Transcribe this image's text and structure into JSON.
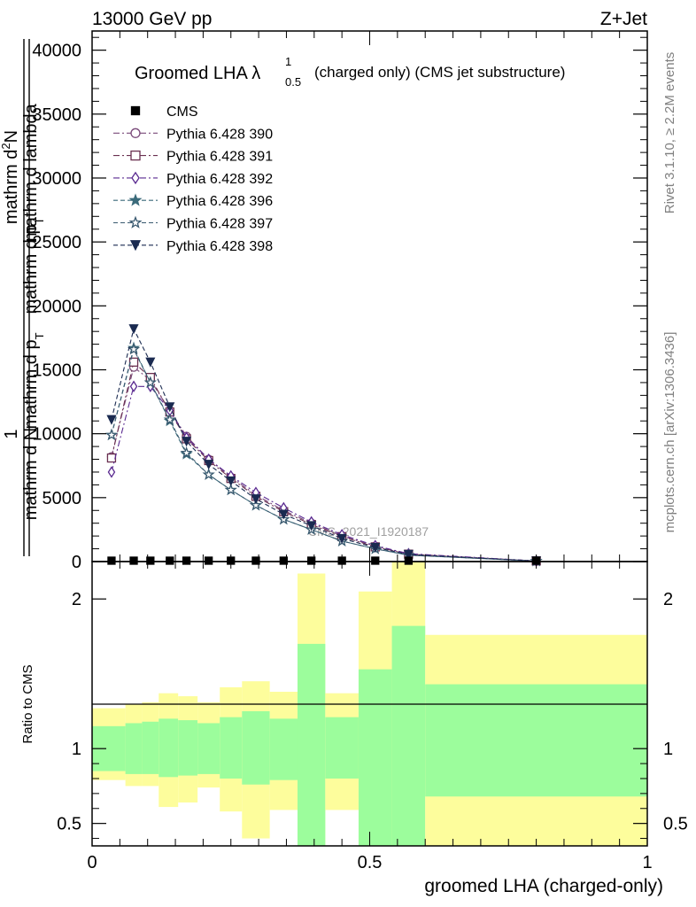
{
  "header": {
    "energy_label": "13000 GeV pp",
    "process_label": "Z+Jet"
  },
  "side_labels": {
    "rivet": "Rivet 3.1.10, ≥ 2.2M events",
    "mcplots": "mcplots.cern.ch [arXiv:1306.3436]"
  },
  "main_plot": {
    "title": "Groomed LHA λ",
    "title_superscript": "1",
    "title_subscript": "0.5",
    "title_suffix": "(charged only) (CMS jet substructure)",
    "ylabel_numerator": "1",
    "ylabel_line1": "mathrm d N",
    "ylabel_line2": "mathrm d p",
    "ylabel_line2_sub": "T",
    "ylabel_line3": "mathrm d lambda",
    "ylabel_top_line1": "mathrm d",
    "ylabel_top_line1_sup": "2",
    "ylabel_top_line1_rest": "N",
    "watermark": "CMS_2021_I1920187"
  },
  "ratio_plot": {
    "ylabel": "Ratio to CMS",
    "xlabel": "groomed LHA (charged-only)"
  },
  "legend": [
    {
      "name": "CMS",
      "color": "#000000",
      "marker": "filled-square",
      "dash": "none"
    },
    {
      "name": "Pythia 6.428 390",
      "color": "#7a4a7a",
      "marker": "open-circle",
      "dash": "7,3,2,3"
    },
    {
      "name": "Pythia 6.428 391",
      "color": "#6a3050",
      "marker": "open-square",
      "dash": "7,3,2,3"
    },
    {
      "name": "Pythia 6.428 392",
      "color": "#5a2a90",
      "marker": "open-diamond",
      "dash": "7,3,2,3"
    },
    {
      "name": "Pythia 6.428 396",
      "color": "#3a6a7a",
      "marker": "filled-star",
      "dash": "5,3"
    },
    {
      "name": "Pythia 6.428 397",
      "color": "#3a5a70",
      "marker": "open-star",
      "dash": "5,3"
    },
    {
      "name": "Pythia 6.428 398",
      "color": "#1a2a50",
      "marker": "filled-triangle-down",
      "dash": "5,3"
    }
  ],
  "chart_data": [
    {
      "type": "line",
      "x": [
        0.035,
        0.075,
        0.105,
        0.14,
        0.17,
        0.21,
        0.25,
        0.295,
        0.345,
        0.395,
        0.45,
        0.51,
        0.57,
        0.8
      ],
      "series": [
        {
          "name": "CMS",
          "values": [
            0.4,
            0.4,
            0.4,
            0.4,
            0.3,
            0.3,
            0.3,
            0.3,
            0.2,
            0.2,
            0.2,
            0.2,
            0.1,
            0.01
          ]
        },
        {
          "name": "Pythia 6.428 390",
          "values": [
            8200,
            15200,
            14200,
            11800,
            9800,
            8000,
            6600,
            5200,
            4000,
            3000,
            2000,
            1200,
            600,
            50
          ]
        },
        {
          "name": "Pythia 6.428 391",
          "values": [
            8100,
            15600,
            14400,
            11700,
            9600,
            7900,
            6500,
            5100,
            3900,
            2900,
            1950,
            1150,
            580,
            50
          ]
        },
        {
          "name": "Pythia 6.428 392",
          "values": [
            7000,
            13700,
            13700,
            11800,
            9700,
            8000,
            6700,
            5400,
            4200,
            3100,
            2100,
            1250,
            620,
            50
          ]
        },
        {
          "name": "Pythia 6.428 396",
          "values": [
            9900,
            16700,
            14000,
            11000,
            8400,
            6800,
            5600,
            4400,
            3300,
            2500,
            1600,
            1000,
            500,
            40
          ]
        },
        {
          "name": "Pythia 6.428 397",
          "values": [
            9900,
            16600,
            14000,
            11100,
            8500,
            6800,
            5600,
            4400,
            3300,
            2500,
            1600,
            1000,
            500,
            40
          ]
        },
        {
          "name": "Pythia 6.428 398",
          "values": [
            11100,
            18200,
            15600,
            12100,
            9400,
            7600,
            6300,
            4900,
            3700,
            2800,
            1800,
            1100,
            550,
            40
          ]
        }
      ],
      "xlim": [
        0,
        1
      ],
      "ylim": [
        0,
        41500
      ],
      "yticks": [
        0,
        5000,
        10000,
        15000,
        20000,
        25000,
        30000,
        35000,
        40000
      ],
      "ytick_labels": [
        "0",
        "5000",
        "10000",
        "15000",
        "20000",
        "25000",
        "30000",
        "35000",
        "40000"
      ],
      "legend_position": "top-left",
      "grid": false
    },
    {
      "type": "area",
      "ylim": [
        0.35,
        2.25
      ],
      "yticks": [
        0.5,
        1,
        2
      ],
      "ytick_labels": [
        "0.5",
        "1",
        "2"
      ],
      "xlim": [
        0,
        1
      ],
      "xticks": [
        0,
        0.5,
        1
      ],
      "xtick_labels": [
        "0",
        "0.5",
        "1"
      ],
      "reference_line": 1,
      "bins": [
        {
          "x0": 0.0,
          "x1": 0.06,
          "green": [
            0.85,
            1.15
          ],
          "yellow": [
            0.79,
            1.27
          ]
        },
        {
          "x0": 0.06,
          "x1": 0.09,
          "green": [
            0.83,
            1.17
          ],
          "yellow": [
            0.75,
            1.3
          ]
        },
        {
          "x0": 0.09,
          "x1": 0.12,
          "green": [
            0.83,
            1.18
          ],
          "yellow": [
            0.75,
            1.31
          ]
        },
        {
          "x0": 0.12,
          "x1": 0.155,
          "green": [
            0.81,
            1.2
          ],
          "yellow": [
            0.61,
            1.37
          ]
        },
        {
          "x0": 0.155,
          "x1": 0.19,
          "green": [
            0.82,
            1.19
          ],
          "yellow": [
            0.64,
            1.35
          ]
        },
        {
          "x0": 0.19,
          "x1": 0.23,
          "green": [
            0.83,
            1.17
          ],
          "yellow": [
            0.74,
            1.31
          ]
        },
        {
          "x0": 0.23,
          "x1": 0.27,
          "green": [
            0.8,
            1.21
          ],
          "yellow": [
            0.58,
            1.41
          ]
        },
        {
          "x0": 0.27,
          "x1": 0.32,
          "green": [
            0.76,
            1.25
          ],
          "yellow": [
            0.4,
            1.45
          ]
        },
        {
          "x0": 0.32,
          "x1": 0.37,
          "green": [
            0.79,
            1.2
          ],
          "yellow": [
            0.59,
            1.38
          ]
        },
        {
          "x0": 0.37,
          "x1": 0.42,
          "green": [
            0.3,
            1.7
          ],
          "yellow": [
            0.3,
            2.17
          ]
        },
        {
          "x0": 0.42,
          "x1": 0.48,
          "green": [
            0.8,
            1.21
          ],
          "yellow": [
            0.59,
            1.37
          ]
        },
        {
          "x0": 0.48,
          "x1": 0.54,
          "green": [
            0.3,
            1.53
          ],
          "yellow": [
            0.3,
            2.05
          ]
        },
        {
          "x0": 0.54,
          "x1": 0.6,
          "green": [
            0.3,
            1.82
          ],
          "yellow": [
            0.3,
            2.4
          ]
        },
        {
          "x0": 0.6,
          "x1": 1.0,
          "green": [
            0.68,
            1.43
          ],
          "yellow": [
            0.3,
            1.76
          ]
        }
      ],
      "colors": {
        "green": "#9cfd9c",
        "yellow": "#fdfd9c"
      }
    }
  ]
}
